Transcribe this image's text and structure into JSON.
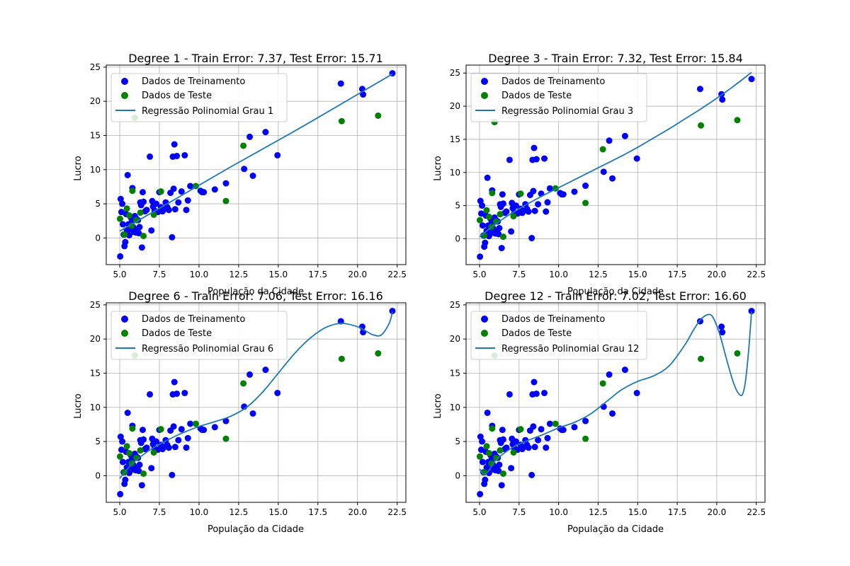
{
  "figure": {
    "background": "#ffffff"
  },
  "colors": {
    "train_points": "#0000ff",
    "test_points": "#008000",
    "regression_line": "#1f77b4",
    "grid": "#b0b0b0"
  },
  "chart_data": [
    {
      "type": "scatter",
      "title": "Degree 1 - Train Error: 7.37, Test Error: 15.71",
      "xlabel": "População da Cidade",
      "ylabel": "Lucro",
      "xlim": [
        4.15,
        23.05
      ],
      "ylim": [
        -3.9,
        25.3
      ],
      "xticks": [
        5.0,
        7.5,
        10.0,
        12.5,
        15.0,
        17.5,
        20.0,
        22.5
      ],
      "xtick_labels": [
        "5.0",
        "7.5",
        "10.0",
        "12.5",
        "15.0",
        "17.5",
        "20.0",
        "22.5"
      ],
      "yticks": [
        0,
        5,
        10,
        15,
        20,
        25
      ],
      "ytick_labels": [
        "0",
        "5",
        "10",
        "15",
        "20",
        "25"
      ],
      "grid": true,
      "legend_position": "top-left",
      "legend": [
        "Dados de Treinamento",
        "Dados de Teste",
        "Regressão Polinomial Grau 1"
      ],
      "line": {
        "x": [
          5.0,
          8.0,
          12.0,
          16.0,
          20.0,
          22.2
        ],
        "y": [
          1.0,
          5.0,
          10.4,
          15.6,
          21.0,
          24.0
        ]
      }
    },
    {
      "type": "scatter",
      "title": "Degree 3 - Train Error: 7.32, Test Error: 15.84",
      "xlabel": "População da Cidade",
      "ylabel": "Lucro",
      "xlim": [
        4.15,
        23.05
      ],
      "ylim": [
        -3.9,
        26.2
      ],
      "xticks": [
        5.0,
        7.5,
        10.0,
        12.5,
        15.0,
        17.5,
        20.0,
        22.5
      ],
      "xtick_labels": [
        "5.0",
        "7.5",
        "10.0",
        "12.5",
        "15.0",
        "17.5",
        "20.0",
        "22.5"
      ],
      "yticks": [
        0,
        5,
        10,
        15,
        20,
        25
      ],
      "ytick_labels": [
        "0",
        "5",
        "10",
        "15",
        "20",
        "25"
      ],
      "grid": true,
      "legend_position": "top-left",
      "legend": [
        "Dados de Treinamento",
        "Dados de Teste",
        "Regressão Polinomial Grau 3"
      ],
      "line": {
        "x": [
          5.0,
          6.0,
          7.0,
          8.0,
          9.0,
          10.0,
          11.0,
          12.0,
          13.0,
          14.0,
          15.0,
          16.0,
          17.0,
          18.0,
          19.0,
          20.0,
          21.0,
          22.2
        ],
        "y": [
          0.3,
          2.2,
          3.8,
          5.2,
          6.5,
          7.7,
          8.9,
          10.1,
          11.3,
          12.5,
          13.8,
          15.2,
          16.6,
          18.1,
          19.6,
          21.2,
          22.9,
          25.1
        ]
      }
    },
    {
      "type": "scatter",
      "title": "Degree 6 - Train Error: 7.06, Test Error: 16.16",
      "xlabel": "População da Cidade",
      "ylabel": "Lucro",
      "xlim": [
        4.15,
        23.05
      ],
      "ylim": [
        -3.9,
        25.3
      ],
      "xticks": [
        5.0,
        7.5,
        10.0,
        12.5,
        15.0,
        17.5,
        20.0,
        22.5
      ],
      "xtick_labels": [
        "5.0",
        "7.5",
        "10.0",
        "12.5",
        "15.0",
        "17.5",
        "20.0",
        "22.5"
      ],
      "yticks": [
        0,
        5,
        10,
        15,
        20,
        25
      ],
      "ytick_labels": [
        "0",
        "5",
        "10",
        "15",
        "20",
        "25"
      ],
      "grid": true,
      "legend_position": "top-left",
      "legend": [
        "Dados de Treinamento",
        "Dados de Teste",
        "Regressão Polinomial Grau 6"
      ],
      "line": {
        "x": [
          5.0,
          5.5,
          6.0,
          7.0,
          8.0,
          9.0,
          10.0,
          11.0,
          12.0,
          13.0,
          14.0,
          15.0,
          16.0,
          17.0,
          18.0,
          19.0,
          20.0,
          20.5,
          21.0,
          21.5,
          22.0,
          22.2
        ],
        "y": [
          -0.4,
          1.0,
          2.2,
          3.9,
          5.2,
          6.3,
          7.2,
          7.9,
          8.7,
          10.0,
          12.2,
          15.0,
          17.8,
          20.1,
          21.7,
          22.3,
          21.8,
          21.2,
          20.6,
          20.6,
          22.3,
          24.0
        ]
      }
    },
    {
      "type": "scatter",
      "title": "Degree 12 - Train Error: 7.02, Test Error: 16.60",
      "xlabel": "População da Cidade",
      "ylabel": "Lucro",
      "xlim": [
        4.15,
        23.05
      ],
      "ylim": [
        -3.9,
        25.3
      ],
      "xticks": [
        5.0,
        7.5,
        10.0,
        12.5,
        15.0,
        17.5,
        20.0,
        22.5
      ],
      "xtick_labels": [
        "5.0",
        "7.5",
        "10.0",
        "12.5",
        "15.0",
        "17.5",
        "20.0",
        "22.5"
      ],
      "yticks": [
        0,
        5,
        10,
        15,
        20,
        25
      ],
      "ytick_labels": [
        "0",
        "5",
        "10",
        "15",
        "20",
        "25"
      ],
      "grid": true,
      "legend_position": "top-left",
      "legend": [
        "Dados de Treinamento",
        "Dados de Teste",
        "Regressão Polinomial Grau 12"
      ],
      "line": {
        "x": [
          5.0,
          5.3,
          5.6,
          6.0,
          7.0,
          8.0,
          9.0,
          10.0,
          11.0,
          12.0,
          13.0,
          14.0,
          15.0,
          16.0,
          17.0,
          18.0,
          18.5,
          19.0,
          19.5,
          19.8,
          20.2,
          20.6,
          21.0,
          21.3,
          21.6,
          21.8,
          22.0,
          22.2
        ],
        "y": [
          1.0,
          0.2,
          0.8,
          2.2,
          4.0,
          5.1,
          6.0,
          7.0,
          7.8,
          9.0,
          10.8,
          12.6,
          13.8,
          14.6,
          16.1,
          19.2,
          21.2,
          22.9,
          23.6,
          23.0,
          20.6,
          17.2,
          14.0,
          12.3,
          11.8,
          13.6,
          17.9,
          24.0
        ]
      }
    }
  ],
  "train_points": {
    "x": [
      5.03,
      5.06,
      5.11,
      5.16,
      5.2,
      5.25,
      5.3,
      5.35,
      5.4,
      5.45,
      5.5,
      5.55,
      5.6,
      5.65,
      5.7,
      5.75,
      5.8,
      5.85,
      5.9,
      5.95,
      6.0,
      6.05,
      6.1,
      6.15,
      6.2,
      6.25,
      6.3,
      6.35,
      6.4,
      6.45,
      6.5,
      6.6,
      6.7,
      6.9,
      7.0,
      7.05,
      7.1,
      7.2,
      7.3,
      7.4,
      7.5,
      7.6,
      7.7,
      7.8,
      7.9,
      8.0,
      8.1,
      8.2,
      8.3,
      8.35,
      8.4,
      8.45,
      8.5,
      8.6,
      8.7,
      8.9,
      9.1,
      9.2,
      9.3,
      9.45,
      10.1,
      10.2,
      10.3,
      11.0,
      11.7,
      12.85,
      13.2,
      13.4,
      14.2,
      14.95,
      18.95,
      20.3,
      20.35,
      22.2
    ],
    "y": [
      -2.7,
      5.7,
      3.8,
      5.0,
      2.0,
      0.5,
      -1.2,
      -0.6,
      3.5,
      1.2,
      9.2,
      2.0,
      0.4,
      1.3,
      3.0,
      2.3,
      7.3,
      1.6,
      0.9,
      3.2,
      0.8,
      2.8,
      1.2,
      2.6,
      0.7,
      1.6,
      5.2,
      4.8,
      -1.4,
      6.7,
      5.3,
      3.9,
      4.1,
      11.9,
      1.1,
      5.4,
      4.6,
      4.0,
      5.0,
      3.8,
      6.7,
      4.5,
      3.9,
      4.2,
      5.2,
      4.5,
      4.1,
      6.6,
      0.1,
      11.9,
      7.2,
      13.7,
      4.2,
      12.0,
      5.2,
      6.8,
      12.1,
      4.1,
      5.5,
      7.6,
      6.9,
      6.7,
      6.7,
      7.1,
      8.0,
      10.1,
      14.8,
      9.1,
      15.5,
      12.1,
      22.6,
      21.8,
      21.0,
      24.1
    ]
  },
  "test_points": {
    "x": [
      5.02,
      5.3,
      5.45,
      5.6,
      5.75,
      5.8,
      5.95,
      6.05,
      6.3,
      6.5,
      7.15,
      7.6,
      9.8,
      11.7,
      12.8,
      19.0,
      21.3
    ],
    "y": [
      2.8,
      0.5,
      4.3,
      3.3,
      1.8,
      6.9,
      17.6,
      2.6,
      3.7,
      0.3,
      3.4,
      6.8,
      7.6,
      5.4,
      13.5,
      17.1,
      17.9
    ]
  }
}
